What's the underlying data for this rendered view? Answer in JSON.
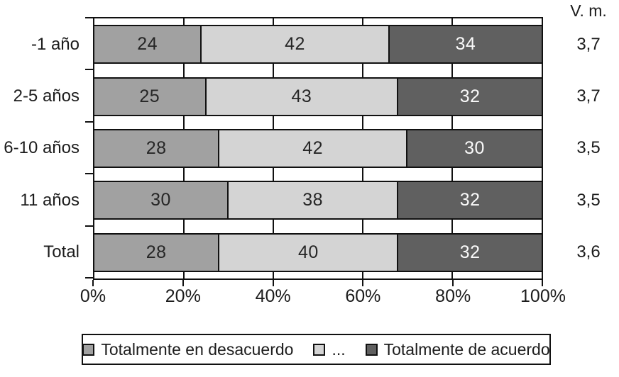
{
  "chart_data": {
    "type": "bar",
    "orientation": "horizontal-stacked",
    "title": "",
    "categories": [
      "-1 año",
      "2-5 años",
      "6-10 años",
      "11 años",
      "Total"
    ],
    "series": [
      {
        "name": "Totalmente en desacuerdo",
        "color": "#a1a1a1",
        "label_color": "#262626",
        "values": [
          24,
          25,
          28,
          30,
          28
        ]
      },
      {
        "name": "...",
        "color": "#d4d4d4",
        "label_color": "#262626",
        "values": [
          42,
          43,
          42,
          38,
          40
        ]
      },
      {
        "name": "Totalmente de acuerdo",
        "color": "#606060",
        "label_color": "#fafafa",
        "values": [
          34,
          32,
          30,
          32,
          32
        ]
      }
    ],
    "right_column": {
      "header": "V. m.",
      "values": [
        "3,7",
        "3,7",
        "3,5",
        "3,5",
        "3,6"
      ]
    },
    "x_ticks": [
      {
        "label": "0%",
        "value": 0
      },
      {
        "label": "20%",
        "value": 20
      },
      {
        "label": "40%",
        "value": 40
      },
      {
        "label": "60%",
        "value": 60
      },
      {
        "label": "80%",
        "value": 80
      },
      {
        "label": "100%",
        "value": 100
      }
    ],
    "xlim": [
      0,
      100
    ],
    "grid": true,
    "legend_position": "bottom",
    "axis_color": "#111111"
  }
}
